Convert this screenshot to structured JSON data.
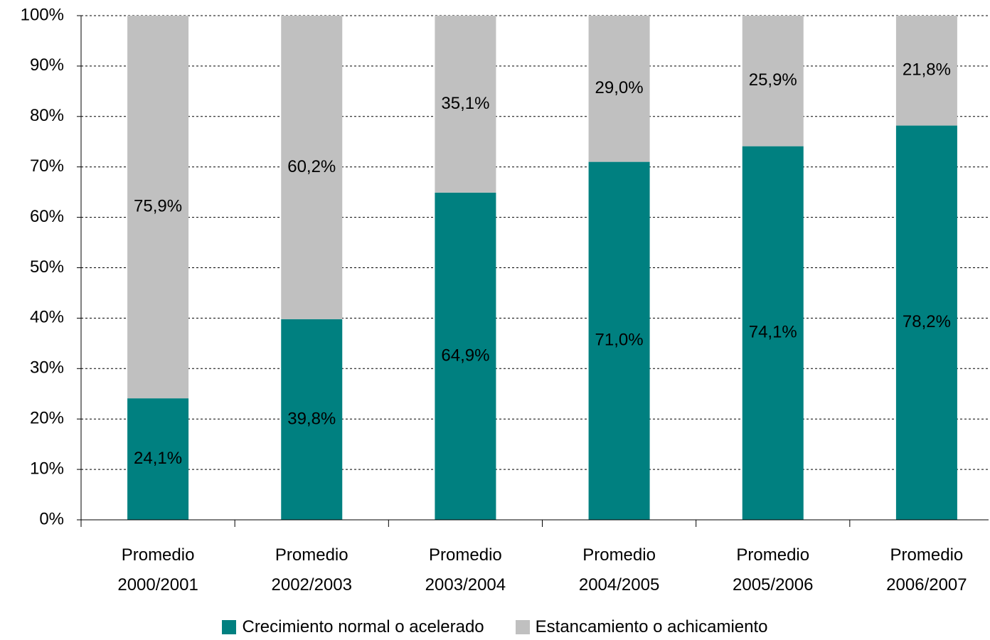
{
  "chart_data": {
    "type": "stacked-bar",
    "categories": [
      "Promedio 2000/2001",
      "Promedio 2002/2003",
      "Promedio 2003/2004",
      "Promedio 2004/2005",
      "Promedio 2005/2006",
      "Promedio 2006/2007"
    ],
    "series": [
      {
        "name": "Crecimiento normal o acelerado",
        "color": "#008080",
        "values": [
          24.1,
          39.8,
          64.9,
          71.0,
          74.1,
          78.2
        ],
        "value_labels": [
          "24,1%",
          "39,8%",
          "64,9%",
          "71,0%",
          "74,1%",
          "78,2%"
        ]
      },
      {
        "name": "Estancamiento o achicamiento",
        "color": "#c0c0c0",
        "values": [
          75.9,
          60.2,
          35.1,
          29.0,
          25.9,
          21.8
        ],
        "value_labels": [
          "75,9%",
          "60,2%",
          "35,1%",
          "29,0%",
          "25,9%",
          "21,8%"
        ]
      }
    ],
    "ylim": [
      0,
      100
    ],
    "yticks": [
      {
        "value": 0,
        "label": "0%"
      },
      {
        "value": 10,
        "label": "10%"
      },
      {
        "value": 20,
        "label": "20%"
      },
      {
        "value": 30,
        "label": "30%"
      },
      {
        "value": 40,
        "label": "40%"
      },
      {
        "value": 50,
        "label": "50%"
      },
      {
        "value": 60,
        "label": "60%"
      },
      {
        "value": 70,
        "label": "70%"
      },
      {
        "value": 80,
        "label": "80%"
      },
      {
        "value": 90,
        "label": "90%"
      },
      {
        "value": 100,
        "label": "100%"
      }
    ],
    "grid": true,
    "legend": "bottom"
  }
}
